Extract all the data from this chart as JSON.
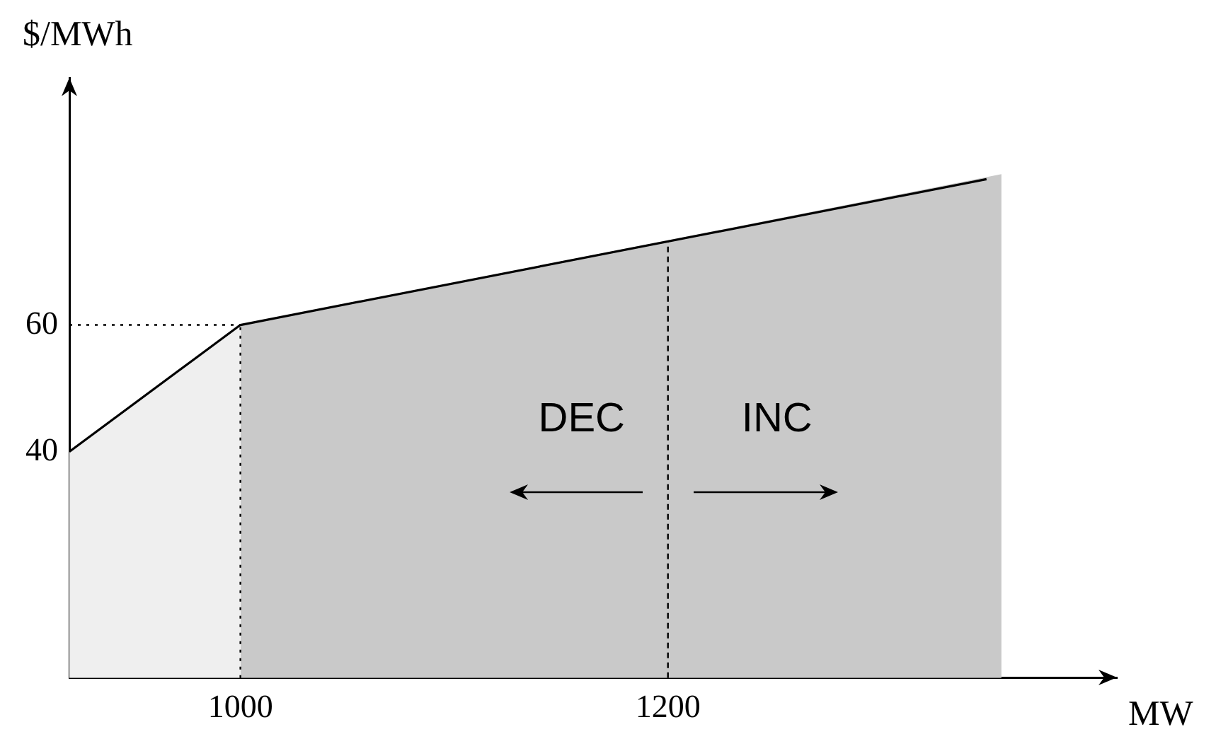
{
  "chart_data": {
    "type": "area",
    "xlabel": "MW",
    "ylabel": "$/MWh",
    "xlim": [
      920,
      1410
    ],
    "ylim": [
      4.3,
      99
    ],
    "xticks": [
      1000,
      1200
    ],
    "yticks": [
      40,
      60
    ],
    "grid": false,
    "legend": false,
    "series": [
      {
        "color": "#efefef",
        "x": [
          920,
          1000
        ],
        "values": [
          40,
          60
        ]
      },
      {
        "color": "#c9c9c9",
        "x": [
          1000,
          1356
        ],
        "values": [
          60,
          83.8
        ]
      },
      {
        "type": "line",
        "color": "#000000",
        "x": [
          920,
          1000,
          1349
        ],
        "values": [
          40,
          60,
          83
        ]
      }
    ],
    "ref_lines": [
      {
        "axis": "y",
        "value": 60,
        "color": "#000000",
        "line_style": "dotted"
      },
      {
        "axis": "x",
        "value": 1000,
        "color": "#000000",
        "line_style": "dotted"
      },
      {
        "axis": "x",
        "value": 1200,
        "color": "#000000",
        "line_style": "dashed"
      }
    ],
    "annotations": [
      "DEC",
      "INC"
    ]
  }
}
